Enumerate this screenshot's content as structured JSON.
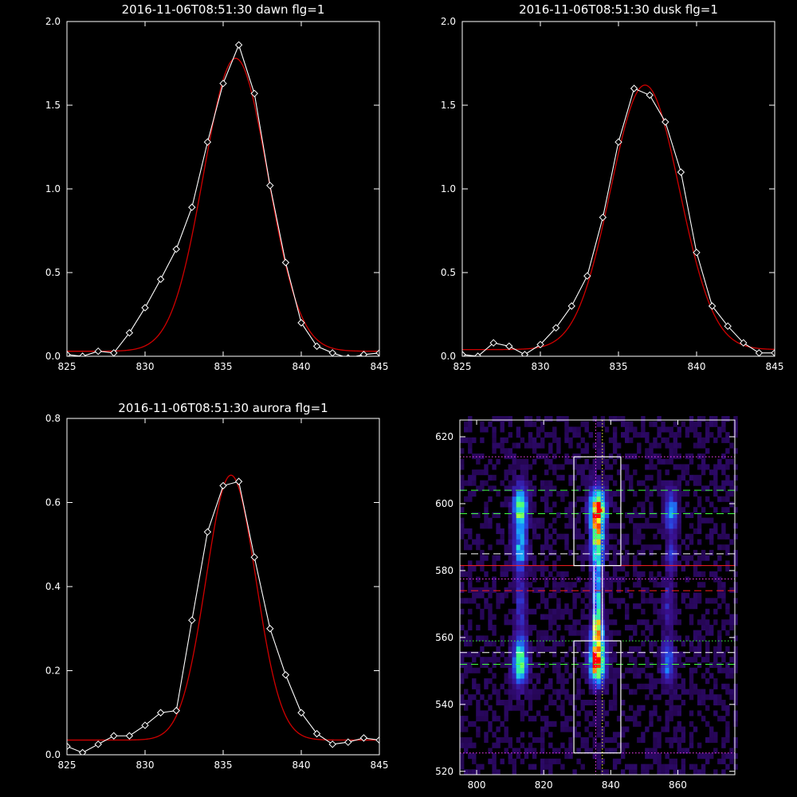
{
  "chart_data": [
    {
      "type": "line",
      "title": "2016-11-06T08:51:30 dawn flg=1",
      "xlim": [
        825,
        845
      ],
      "ylim": [
        0,
        2
      ],
      "xticks": [
        825,
        830,
        835,
        840,
        845
      ],
      "xtick_labels": [
        "825",
        "830",
        "835",
        "840",
        "845"
      ],
      "yticks": [
        0,
        0.5,
        1,
        1.5,
        2
      ],
      "ytick_labels": [
        "0.0",
        "0.5",
        "1.0",
        "1.5",
        "2.0"
      ],
      "series": [
        {
          "color": "#ffffff",
          "marker": "diamond",
          "x": [
            825,
            826,
            827,
            828,
            829,
            830,
            831,
            832,
            833,
            834,
            835,
            836,
            837,
            838,
            839,
            840,
            841,
            842,
            843,
            844,
            845
          ],
          "y": [
            0.01,
            0.0,
            0.03,
            0.02,
            0.14,
            0.29,
            0.46,
            0.64,
            0.89,
            1.28,
            1.63,
            1.86,
            1.57,
            1.02,
            0.56,
            0.2,
            0.06,
            0.02,
            -0.01,
            0.01,
            0.02
          ]
        },
        {
          "color": "#d00000",
          "model": "gaussian",
          "baseline": 0.03,
          "amplitude": 1.75,
          "center": 835.8,
          "sigma": 2.05
        }
      ]
    },
    {
      "type": "line",
      "title": "2016-11-06T08:51:30 dusk flg=1",
      "xlim": [
        825,
        845
      ],
      "ylim": [
        0,
        2
      ],
      "xticks": [
        825,
        830,
        835,
        840,
        845
      ],
      "xtick_labels": [
        "825",
        "830",
        "835",
        "840",
        "845"
      ],
      "yticks": [
        0,
        0.5,
        1,
        1.5,
        2
      ],
      "ytick_labels": [
        "0.0",
        "0.5",
        "1.0",
        "1.5",
        "2.0"
      ],
      "series": [
        {
          "color": "#ffffff",
          "marker": "diamond",
          "x": [
            825,
            826,
            827,
            828,
            829,
            830,
            831,
            832,
            833,
            834,
            835,
            836,
            837,
            838,
            839,
            840,
            841,
            842,
            843,
            844,
            845
          ],
          "y": [
            0.01,
            0.0,
            0.08,
            0.06,
            0.01,
            0.07,
            0.17,
            0.3,
            0.48,
            0.83,
            1.28,
            1.6,
            1.56,
            1.4,
            1.1,
            0.62,
            0.3,
            0.18,
            0.08,
            0.02,
            0.02
          ]
        },
        {
          "color": "#d00000",
          "model": "gaussian",
          "baseline": 0.04,
          "amplitude": 1.58,
          "center": 836.7,
          "sigma": 2.2
        }
      ]
    },
    {
      "type": "line",
      "title": "2016-11-06T08:51:30 aurora flg=1",
      "xlim": [
        825,
        845
      ],
      "ylim": [
        0,
        0.8
      ],
      "xticks": [
        825,
        830,
        835,
        840,
        845
      ],
      "xtick_labels": [
        "825",
        "830",
        "835",
        "840",
        "845"
      ],
      "yticks": [
        0,
        0.2,
        0.4,
        0.6,
        0.8
      ],
      "ytick_labels": [
        "0.0",
        "0.2",
        "0.4",
        "0.6",
        "0.8"
      ],
      "series": [
        {
          "color": "#ffffff",
          "marker": "diamond",
          "x": [
            825,
            826,
            827,
            828,
            829,
            830,
            831,
            832,
            833,
            834,
            835,
            836,
            837,
            838,
            839,
            840,
            841,
            842,
            843,
            844,
            845
          ],
          "y": [
            0.02,
            0.005,
            0.025,
            0.045,
            0.045,
            0.07,
            0.1,
            0.105,
            0.32,
            0.53,
            0.64,
            0.65,
            0.47,
            0.3,
            0.19,
            0.1,
            0.05,
            0.025,
            0.03,
            0.04,
            0.035
          ]
        },
        {
          "color": "#d00000",
          "model": "gaussian",
          "baseline": 0.035,
          "amplitude": 0.63,
          "center": 835.5,
          "sigma": 1.6
        }
      ]
    },
    {
      "type": "heatmap",
      "title": "",
      "xlim": [
        795,
        877
      ],
      "ylim": [
        519,
        625
      ],
      "xticks": [
        800,
        820,
        840,
        860
      ],
      "xtick_labels": [
        "800",
        "820",
        "840",
        "860"
      ],
      "yticks": [
        520,
        540,
        560,
        580,
        600,
        620
      ],
      "ytick_labels": [
        "520",
        "540",
        "560",
        "580",
        "600",
        "620"
      ],
      "colormap": [
        "#1a0033",
        "#3a1090",
        "#2d3ad8",
        "#1a8cff",
        "#22e0e0",
        "#40ff80",
        "#f0ff20",
        "#ff8000",
        "#ff0000"
      ],
      "emission_blobs": [
        {
          "x": 813,
          "y": 598,
          "sx": 1.4,
          "sy": 4.5,
          "amp": 0.62
        },
        {
          "x": 813,
          "y": 586,
          "sx": 1.3,
          "sy": 4.0,
          "amp": 0.38
        },
        {
          "x": 836,
          "y": 598,
          "sx": 1.5,
          "sy": 4.0,
          "amp": 1.0
        },
        {
          "x": 836,
          "y": 588,
          "sx": 1.3,
          "sy": 5.0,
          "amp": 0.6
        },
        {
          "x": 836,
          "y": 570,
          "sx": 0.8,
          "sy": 8.0,
          "amp": 0.5
        },
        {
          "x": 813,
          "y": 553,
          "sx": 1.4,
          "sy": 4.5,
          "amp": 0.62
        },
        {
          "x": 836,
          "y": 553,
          "sx": 1.5,
          "sy": 4.0,
          "amp": 1.0
        },
        {
          "x": 836,
          "y": 562,
          "sx": 1.2,
          "sy": 3.0,
          "amp": 0.5
        },
        {
          "x": 858,
          "y": 598,
          "sx": 1.2,
          "sy": 4.0,
          "amp": 0.38
        },
        {
          "x": 858,
          "y": 585,
          "sx": 1.0,
          "sy": 3.0,
          "amp": 0.22
        },
        {
          "x": 857,
          "y": 553,
          "sx": 1.2,
          "sy": 4.0,
          "amp": 0.32
        },
        {
          "x": 813,
          "y": 570,
          "sx": 1.0,
          "sy": 5.0,
          "amp": 0.22
        },
        {
          "x": 857,
          "y": 570,
          "sx": 1.0,
          "sy": 5.0,
          "amp": 0.15
        }
      ],
      "peak_markers": [
        {
          "x": 837,
          "y": 598
        },
        {
          "x": 836,
          "y": 553
        }
      ],
      "boxes": [
        {
          "x0": 829,
          "x1": 843,
          "y0": 581.5,
          "y1": 614,
          "color": "#ffffff"
        },
        {
          "x0": 829,
          "x1": 843,
          "y0": 525.5,
          "y1": 559,
          "color": "#ffffff"
        },
        {
          "x0": 835,
          "x1": 837.5,
          "y0": 559,
          "y1": 581.5,
          "color": "#ffffff"
        }
      ],
      "hlines": [
        {
          "y": 614,
          "color": "#ff40ff",
          "style": "dotted"
        },
        {
          "y": 604,
          "color": "#40ff40",
          "style": "dashed"
        },
        {
          "y": 597,
          "color": "#40ff40",
          "style": "dashed"
        },
        {
          "y": 585,
          "color": "#ffffff",
          "style": "dashed"
        },
        {
          "y": 581.5,
          "color": "#ff2020",
          "style": "solid"
        },
        {
          "y": 577.5,
          "color": "#ff40ff",
          "style": "dotted"
        },
        {
          "y": 574,
          "color": "#ff2020",
          "style": "dashed"
        },
        {
          "y": 559,
          "color": "#40ff40",
          "style": "dotted"
        },
        {
          "y": 555.5,
          "color": "#ffffff",
          "style": "dashed"
        },
        {
          "y": 552,
          "color": "#40ff40",
          "style": "dashed"
        },
        {
          "y": 525.5,
          "color": "#ff40ff",
          "style": "dotted"
        }
      ],
      "vlines": [
        {
          "x": 835.5,
          "color": "#ff40ff",
          "style": "dotted"
        },
        {
          "x": 837.5,
          "color": "#ffff40",
          "style": "dotted"
        }
      ]
    }
  ]
}
